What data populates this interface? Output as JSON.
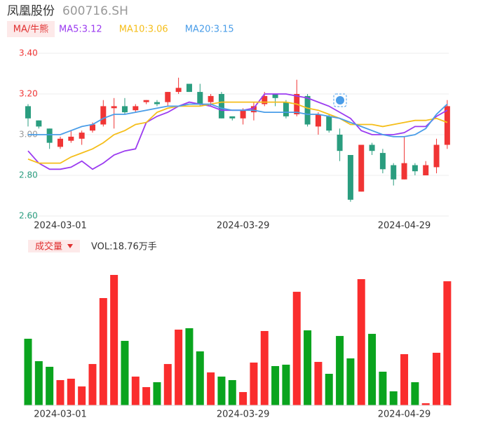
{
  "chart_data": [
    {
      "type": "candlestick",
      "title": "凤凰股份",
      "subtitle": "600716.SH",
      "indicator": "MA/牛熊",
      "categories": [
        null,
        null,
        null,
        "2024-03-01",
        null,
        null,
        null,
        null,
        null,
        null,
        null,
        null,
        null,
        null,
        null,
        null,
        null,
        null,
        null,
        null,
        "2024-03-29",
        null,
        null,
        null,
        null,
        null,
        null,
        null,
        null,
        null,
        null,
        null,
        null,
        null,
        null,
        "2024-04-29",
        null,
        null,
        null,
        null
      ],
      "open": [
        3.14,
        3.07,
        3.03,
        2.94,
        2.97,
        2.98,
        3.02,
        3.05,
        3.13,
        3.14,
        3.12,
        3.16,
        3.16,
        3.16,
        3.21,
        3.25,
        3.21,
        3.16,
        3.2,
        3.09,
        3.08,
        3.11,
        3.15,
        3.2,
        3.16,
        3.1,
        3.19,
        3.04,
        3.09,
        3.0,
        2.9,
        2.72,
        2.95,
        2.91,
        2.85,
        2.78,
        2.85,
        2.8,
        2.84,
        2.95
      ],
      "high": [
        3.15,
        3.07,
        3.03,
        2.99,
        3.02,
        3.02,
        3.06,
        3.17,
        3.18,
        3.18,
        3.15,
        3.17,
        3.17,
        3.21,
        3.28,
        3.25,
        3.25,
        3.2,
        3.21,
        3.09,
        3.13,
        3.16,
        3.21,
        3.2,
        3.17,
        3.27,
        3.2,
        3.11,
        3.1,
        3.03,
        2.9,
        2.95,
        2.96,
        2.93,
        2.86,
        2.99,
        2.86,
        2.87,
        2.98,
        3.17
      ],
      "low": [
        3.04,
        3.03,
        2.93,
        2.93,
        2.96,
        2.95,
        3.01,
        3.04,
        3.03,
        3.1,
        3.11,
        3.15,
        3.14,
        3.14,
        3.2,
        3.21,
        3.14,
        3.14,
        3.08,
        3.07,
        3.05,
        3.07,
        3.14,
        3.14,
        3.08,
        3.09,
        3.04,
        3.0,
        3.01,
        2.87,
        2.67,
        2.72,
        2.9,
        2.81,
        2.75,
        2.78,
        2.8,
        2.8,
        2.81,
        2.93
      ],
      "close": [
        3.08,
        3.04,
        2.96,
        2.98,
        2.99,
        3.01,
        3.05,
        3.14,
        3.14,
        3.11,
        3.14,
        3.17,
        3.15,
        3.21,
        3.23,
        3.21,
        3.15,
        3.19,
        3.08,
        3.08,
        3.12,
        3.14,
        3.19,
        3.18,
        3.09,
        3.2,
        3.05,
        3.1,
        3.02,
        2.92,
        2.68,
        2.95,
        2.92,
        2.83,
        2.78,
        2.86,
        2.82,
        2.85,
        2.95,
        3.14
      ],
      "up_color": "#f03535",
      "down_color": "#2a9d7f",
      "series": [
        {
          "name": "MA5:3.12",
          "color": "#9b3bf0",
          "values": [
            2.92,
            2.86,
            2.83,
            2.83,
            2.84,
            2.87,
            2.83,
            2.86,
            2.9,
            2.92,
            2.93,
            3.06,
            3.09,
            3.11,
            3.14,
            3.16,
            3.15,
            3.14,
            3.12,
            3.12,
            3.12,
            3.13,
            3.2,
            3.2,
            3.2,
            3.19,
            3.18,
            3.16,
            3.14,
            3.11,
            3.08,
            3.02,
            3.0,
            3.0,
            3.0,
            3.01,
            3.04,
            3.04,
            3.09,
            3.12
          ]
        },
        {
          "name": "MA10:3.06",
          "color": "#f5be1a",
          "values": [
            2.88,
            2.86,
            2.86,
            2.86,
            2.89,
            2.91,
            2.93,
            2.96,
            3.0,
            3.02,
            3.05,
            3.06,
            3.11,
            3.13,
            3.14,
            3.14,
            3.14,
            3.15,
            3.16,
            3.16,
            3.16,
            3.16,
            3.16,
            3.16,
            3.16,
            3.15,
            3.13,
            3.12,
            3.1,
            3.08,
            3.05,
            3.05,
            3.05,
            3.04,
            3.05,
            3.06,
            3.07,
            3.07,
            3.08,
            3.06
          ]
        },
        {
          "name": "MA20:3.15",
          "color": "#4a9de8",
          "values": [
            3.0,
            3.0,
            3.0,
            3.0,
            3.02,
            3.04,
            3.05,
            3.08,
            3.1,
            3.1,
            3.11,
            3.12,
            3.13,
            3.14,
            3.14,
            3.15,
            3.15,
            3.15,
            3.13,
            3.12,
            3.12,
            3.12,
            3.11,
            3.11,
            3.11,
            3.11,
            3.1,
            3.1,
            3.09,
            3.08,
            3.06,
            3.04,
            3.02,
            3.0,
            2.99,
            2.99,
            3.0,
            3.03,
            3.1,
            3.15
          ]
        }
      ],
      "ylim": [
        2.6,
        3.4
      ],
      "yticks": [
        {
          "value": 3.4,
          "label": "3.40"
        },
        {
          "value": 3.2,
          "label": "3.20"
        },
        {
          "value": 3.0,
          "label": "3.00"
        },
        {
          "value": 2.8,
          "label": "2.80"
        },
        {
          "value": 2.6,
          "label": "2.60"
        }
      ],
      "grid": true
    },
    {
      "type": "bar",
      "indicator": "成交量",
      "label": "VOL:18.76万手",
      "categories": [
        null,
        null,
        null,
        "2024-03-01",
        null,
        null,
        null,
        null,
        null,
        null,
        null,
        null,
        null,
        null,
        null,
        null,
        null,
        null,
        null,
        null,
        "2024-03-29",
        null,
        null,
        null,
        null,
        null,
        null,
        null,
        null,
        null,
        null,
        null,
        null,
        null,
        null,
        "2024-04-29",
        null,
        null,
        null,
        null
      ],
      "values": [
        10.07,
        6.68,
        5.83,
        3.82,
        4.03,
        2.86,
        6.25,
        16.22,
        19.72,
        9.75,
        4.35,
        2.76,
        3.5,
        6.25,
        11.45,
        11.66,
        8.16,
        4.98,
        4.35,
        3.82,
        2.01,
        6.47,
        11.24,
        5.94,
        6.15,
        17.17,
        11.34,
        6.57,
        4.77,
        10.49,
        7.1,
        19.08,
        10.81,
        5.09,
        2.12,
        7.74,
        3.5,
        0.32,
        7.95,
        18.76
      ],
      "up_color": "#fa2d2d",
      "down_color": "#0aa41e"
    }
  ]
}
